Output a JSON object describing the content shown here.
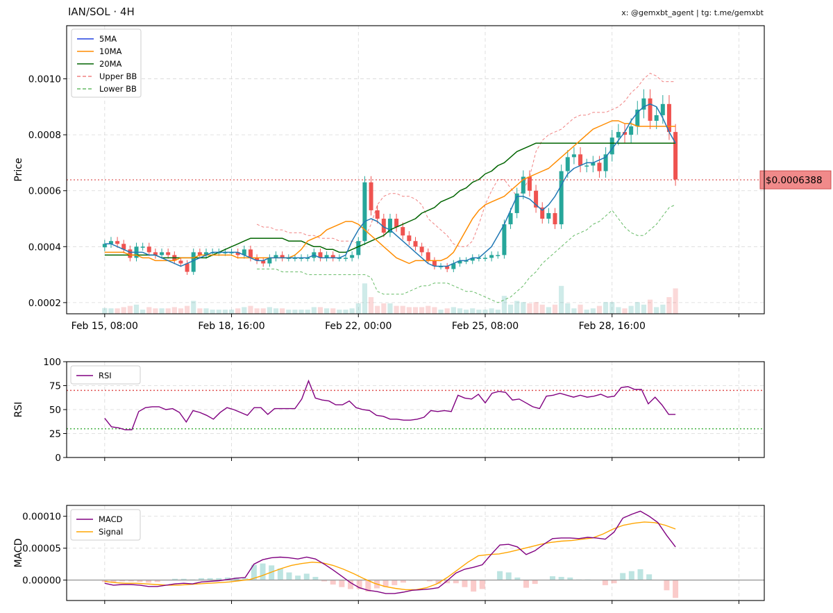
{
  "header": {
    "title": "IAN/SOL · 4H",
    "credit": "x: @gemxbt_agent | tg: t.me/gemxbt"
  },
  "colors": {
    "up": "#26a69a",
    "down": "#ef5350",
    "ma5": "#1f77b4",
    "ma10": "#ff8c00",
    "ma20": "#006400",
    "upper_bb": "#f08080",
    "lower_bb": "#66bb66",
    "rsi": "#800080",
    "macd": "#800080",
    "signal": "#ffa500",
    "price_line": "#e06666"
  },
  "chart_data": [
    {
      "type": "candlestick",
      "ylabel": "Price",
      "ylim": [
        0.00016,
        0.00119
      ],
      "yticks": [
        0.0002,
        0.0004,
        0.0006,
        0.0008,
        0.001
      ],
      "ytick_labels": [
        "0.0002",
        "0.0004",
        "0.0006",
        "0.0008",
        "0.0010"
      ],
      "xticks": [
        {
          "index": 0,
          "label": "Feb 15, 08:00"
        },
        {
          "index": 20,
          "label": "Feb 18, 16:00"
        },
        {
          "index": 40,
          "label": "Feb 22, 00:00"
        },
        {
          "index": 60,
          "label": "Feb 25, 08:00"
        },
        {
          "index": 80,
          "label": "Feb 28, 16:00"
        },
        {
          "index": 100,
          "label": ""
        }
      ],
      "x_range": [
        -6,
        104
      ],
      "grid": true,
      "legend_position": "top-left",
      "legend": [
        "5MA",
        "10MA",
        "20MA",
        "Upper BB",
        "Lower BB"
      ],
      "current_price": 0.0006388,
      "current_price_label": "$0.0006388",
      "vol_max": 0.0012,
      "closes": [
        0.00041,
        0.00042,
        0.00041,
        0.00039,
        0.00036,
        0.0004,
        0.0004,
        0.00038,
        0.00037,
        0.00038,
        0.00037,
        0.00035,
        0.00034,
        0.00031,
        0.00038,
        0.00037,
        0.00038,
        0.00038,
        0.00038,
        0.00038,
        0.00038,
        0.00037,
        0.00039,
        0.00036,
        0.00035,
        0.00034,
        0.00036,
        0.00037,
        0.00036,
        0.00036,
        0.00036,
        0.00036,
        0.00036,
        0.00038,
        0.00036,
        0.00037,
        0.00036,
        0.00036,
        0.00036,
        0.00037,
        0.00042,
        0.00063,
        0.00053,
        0.0005,
        0.00045,
        0.0005,
        0.00047,
        0.00044,
        0.00042,
        0.0004,
        0.00038,
        0.00035,
        0.00033,
        0.00033,
        0.00032,
        0.00034,
        0.00035,
        0.00035,
        0.00036,
        0.00036,
        0.00036,
        0.00037,
        0.00037,
        0.00048,
        0.00052,
        0.00059,
        0.00065,
        0.0006,
        0.00054,
        0.0005,
        0.00052,
        0.00048,
        0.00067,
        0.00072,
        0.00073,
        0.00069,
        0.00069,
        0.0007,
        0.00067,
        0.00073,
        0.00079,
        0.00081,
        0.0008,
        0.00083,
        0.00089,
        0.00093,
        0.00085,
        0.00087,
        0.00091,
        0.00081,
        0.00064
      ],
      "series": [
        {
          "name": "5MA",
          "values": [
            0.00041,
            0.00041,
            0.0004,
            0.00039,
            0.00038,
            0.00038,
            0.00038,
            0.00037,
            0.00037,
            0.00036,
            0.00035,
            0.00034,
            0.00033,
            0.00034,
            0.00035,
            0.00036,
            0.00037,
            0.00038,
            0.00038,
            0.00038,
            0.00038,
            0.00038,
            0.00037,
            0.00036,
            0.00035,
            0.00035,
            0.00036,
            0.00036,
            0.00036,
            0.00036,
            0.00036,
            0.00036,
            0.00036,
            0.00037,
            0.00036,
            0.00036,
            0.00036,
            0.00036,
            0.00037,
            0.00042,
            0.00046,
            0.00049,
            0.0005,
            0.00049,
            0.00047,
            0.00046,
            0.00044,
            0.00042,
            0.0004,
            0.00038,
            0.00036,
            0.00034,
            0.00033,
            0.00033,
            0.00033,
            0.00034,
            0.00035,
            0.00035,
            0.00036,
            0.00036,
            0.00038,
            0.0004,
            0.00044,
            0.00048,
            0.00053,
            0.00058,
            0.00058,
            0.00057,
            0.00055,
            0.00053,
            0.00055,
            0.00058,
            0.00062,
            0.00066,
            0.00068,
            0.00069,
            0.0007,
            0.0007,
            0.00071,
            0.00072,
            0.00075,
            0.00078,
            0.00081,
            0.00085,
            0.00088,
            0.0009,
            0.00091,
            0.0009,
            0.00086,
            0.00081,
            0.00077
          ]
        },
        {
          "name": "10MA",
          "values": [
            0.00038,
            0.00038,
            0.00038,
            0.00038,
            0.00037,
            0.00037,
            0.00036,
            0.00036,
            0.00035,
            0.00035,
            0.00035,
            0.00035,
            0.00036,
            0.00036,
            0.00036,
            0.00037,
            0.00037,
            0.00037,
            0.00037,
            0.00037,
            0.00037,
            0.00036,
            0.00036,
            0.00036,
            0.00036,
            0.00036,
            0.00036,
            0.00036,
            0.00036,
            0.00036,
            0.00037,
            0.00039,
            0.00042,
            0.00043,
            0.00044,
            0.00046,
            0.00047,
            0.00048,
            0.00049,
            0.00049,
            0.00048,
            0.00046,
            0.00044,
            0.00042,
            0.0004,
            0.00038,
            0.00036,
            0.00035,
            0.00034,
            0.00035,
            0.00035,
            0.00035,
            0.00035,
            0.00035,
            0.00036,
            0.00038,
            0.00042,
            0.00046,
            0.0005,
            0.00053,
            0.00055,
            0.00056,
            0.00057,
            0.00058,
            0.0006,
            0.00062,
            0.00064,
            0.00065,
            0.00066,
            0.00067,
            0.00068,
            0.0007,
            0.00072,
            0.00074,
            0.00076,
            0.00078,
            0.0008,
            0.00082,
            0.00083,
            0.00084,
            0.00085,
            0.00085,
            0.00084,
            0.00084,
            0.00083,
            0.00083,
            0.00083,
            0.00083,
            0.00083,
            0.00083,
            0.00083
          ]
        },
        {
          "name": "20MA",
          "values": [
            0.00037,
            0.00037,
            0.00037,
            0.00037,
            0.00037,
            0.00037,
            0.00037,
            0.00037,
            0.00037,
            0.00036,
            0.00036,
            0.00036,
            0.00036,
            0.00036,
            0.00036,
            0.00036,
            0.00036,
            0.00037,
            0.00038,
            0.00039,
            0.0004,
            0.00041,
            0.00042,
            0.00043,
            0.00043,
            0.00043,
            0.00043,
            0.00043,
            0.00043,
            0.00042,
            0.00042,
            0.00042,
            0.00041,
            0.0004,
            0.0004,
            0.00039,
            0.00039,
            0.00038,
            0.00038,
            0.00039,
            0.0004,
            0.00041,
            0.00042,
            0.00043,
            0.00044,
            0.00046,
            0.00047,
            0.00048,
            0.00049,
            0.0005,
            0.00052,
            0.00053,
            0.00054,
            0.00056,
            0.00057,
            0.00058,
            0.0006,
            0.00061,
            0.00063,
            0.00064,
            0.00066,
            0.00067,
            0.00069,
            0.0007,
            0.00072,
            0.00074,
            0.00075,
            0.00076,
            0.00077,
            0.00077,
            0.00077,
            0.00077,
            0.00077,
            0.00077,
            0.00077,
            0.00077,
            0.00077,
            0.00077,
            0.00077,
            0.00077,
            0.00077,
            0.00077,
            0.00077,
            0.00077,
            0.00077,
            0.00077,
            0.00077,
            0.00077,
            0.00077,
            0.00077,
            0.00077
          ]
        },
        {
          "name": "Upper BB",
          "values": [
            0.00048,
            0.00047,
            0.00047,
            0.00046,
            0.00046,
            0.00045,
            0.00045,
            0.00045,
            0.00044,
            0.00044,
            0.00043,
            0.00043,
            0.00043,
            0.00042,
            0.00042,
            0.00042,
            0.00041,
            0.00043,
            0.00048,
            0.00055,
            0.00058,
            0.00059,
            0.00059,
            0.00058,
            0.00058,
            0.00057,
            0.00055,
            0.0005,
            0.00048,
            0.00046,
            0.00044,
            0.00041,
            0.0004,
            0.0004,
            0.00042,
            0.00048,
            0.00055,
            0.0006,
            0.00064,
            0.00064,
            0.00061,
            0.00058,
            0.0006,
            0.00065,
            0.00074,
            0.00078,
            0.0008,
            0.00081,
            0.00082,
            0.00084,
            0.00086,
            0.00087,
            0.00087,
            0.00088,
            0.00088,
            0.00088,
            0.00089,
            0.0009,
            0.00092,
            0.00095,
            0.00097,
            0.001,
            0.00102,
            0.00101,
            0.00099,
            0.00099,
            0.00099
          ]
        },
        {
          "name": "Lower BB",
          "values": [
            0.00032,
            0.00032,
            0.00032,
            0.00032,
            0.00031,
            0.00031,
            0.00031,
            0.00031,
            0.0003,
            0.0003,
            0.0003,
            0.0003,
            0.0003,
            0.0003,
            0.0003,
            0.0003,
            0.0003,
            0.0003,
            0.00029,
            0.00024,
            0.00023,
            0.00023,
            0.00023,
            0.00023,
            0.00024,
            0.00025,
            0.00026,
            0.00026,
            0.00027,
            0.00027,
            0.00027,
            0.00026,
            0.00025,
            0.00024,
            0.00024,
            0.00023,
            0.00022,
            0.00021,
            0.0002,
            0.00021,
            0.00022,
            0.00024,
            0.00026,
            0.00029,
            0.00031,
            0.00034,
            0.00036,
            0.00038,
            0.0004,
            0.00042,
            0.00044,
            0.00045,
            0.00046,
            0.00048,
            0.00049,
            0.00051,
            0.00053,
            0.0005,
            0.00047,
            0.00045,
            0.00044,
            0.00044,
            0.00046,
            0.00048,
            0.00051,
            0.00054,
            0.00055
          ]
        }
      ]
    },
    {
      "type": "line",
      "ylabel": "RSI",
      "ylim": [
        0,
        100
      ],
      "yticks": [
        0,
        25,
        50,
        75,
        100
      ],
      "ytick_labels": [
        "0",
        "25",
        "50",
        "75",
        "100"
      ],
      "overbought": 70,
      "oversold": 30,
      "legend": [
        "RSI"
      ],
      "legend_position": "top-left",
      "series": [
        {
          "name": "RSI",
          "values": [
            41,
            32,
            31,
            29,
            29,
            48,
            52,
            53,
            53,
            50,
            51,
            47,
            37,
            49,
            47,
            44,
            40,
            47,
            52,
            50,
            47,
            44,
            52,
            52,
            45,
            51,
            51,
            51,
            51,
            61,
            80,
            62,
            60,
            59,
            55,
            55,
            59,
            52,
            50,
            49,
            44,
            43,
            40,
            40,
            39,
            39,
            40,
            42,
            49,
            48,
            49,
            48,
            65,
            62,
            61,
            66,
            57,
            67,
            69,
            68,
            60,
            61,
            57,
            53,
            51,
            64,
            65,
            67,
            65,
            63,
            65,
            63,
            64,
            66,
            63,
            64,
            73,
            74,
            71,
            71,
            56,
            63,
            55,
            45,
            45
          ]
        }
      ]
    },
    {
      "type": "line",
      "ylabel": "MACD",
      "ylim": [
        -3.2e-05,
        0.000117
      ],
      "yticks": [
        0,
        5e-05,
        0.0001
      ],
      "ytick_labels": [
        "0.00000",
        "0.00005",
        "0.00010"
      ],
      "legend": [
        "MACD",
        "Signal"
      ],
      "legend_position": "top-left",
      "series": [
        {
          "name": "MACD",
          "values": [
            -5e-06,
            -8e-06,
            -7e-06,
            -7e-06,
            -8e-06,
            -1e-05,
            -1e-05,
            -8e-06,
            -6e-06,
            -5e-06,
            -6e-06,
            -3e-06,
            -2e-06,
            -1e-06,
            1e-06,
            3e-06,
            4e-06,
            2.5e-05,
            3.2e-05,
            3.5e-05,
            3.6e-05,
            3.5e-05,
            3.3e-05,
            3.6e-05,
            3.3e-05,
            2.5e-05,
            1.6e-05,
            6e-06,
            -4e-06,
            -1.2e-05,
            -1.6e-05,
            -1.8e-05,
            -2.1e-05,
            -2.1e-05,
            -1.9e-05,
            -1.6e-05,
            -1.5e-05,
            -1.4e-05,
            -1.2e-05,
            -1e-06,
            1.1e-05,
            1.7e-05,
            2e-05,
            2.4e-05,
            4e-05,
            5.5e-05,
            5.6e-05,
            5.2e-05,
            4e-05,
            4.6e-05,
            5.6e-05,
            6.5e-05,
            6.6e-05,
            6.6e-05,
            6.5e-05,
            6.7e-05,
            6.6e-05,
            6.4e-05,
            7.5e-05,
            9.7e-05,
            0.000103,
            0.000108,
            0.0001,
            9e-05,
            7e-05,
            5.2e-05
          ]
        },
        {
          "name": "Signal",
          "values": [
            -2e-06,
            -4e-06,
            -5e-06,
            -5e-06,
            -6e-06,
            -7e-06,
            -8e-06,
            -8e-06,
            -7e-06,
            -6e-06,
            -5e-06,
            -4e-06,
            -3e-06,
            -1e-06,
            1e-06,
            6e-06,
            1.2e-05,
            1.8e-05,
            2.3e-05,
            2.6e-05,
            2.8e-05,
            2.7e-05,
            2.3e-05,
            1.7e-05,
            1e-05,
            2e-06,
            -5e-06,
            -1e-05,
            -1.3e-05,
            -1.5e-05,
            -1.5e-05,
            -1.2e-05,
            -6e-06,
            4e-06,
            1.6e-05,
            2.8e-05,
            3.8e-05,
            4e-05,
            4.1e-05,
            4.4e-05,
            4.8e-05,
            5.2e-05,
            5.6e-05,
            5.9e-05,
            6.1e-05,
            6.2e-05,
            6.4e-05,
            6.6e-05,
            7.2e-05,
            8e-05,
            8.6e-05,
            8.9e-05,
            9.1e-05,
            9e-05,
            8.6e-05,
            8e-05
          ]
        }
      ]
    }
  ]
}
